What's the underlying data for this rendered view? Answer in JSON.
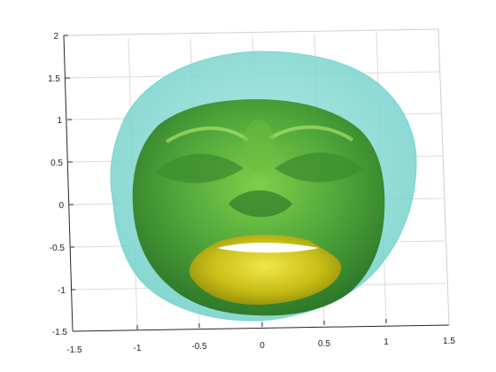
{
  "figure": {
    "background_color": "#ffffff",
    "axes_box_color": "#262626",
    "grid_color": "#dcdcdc",
    "grid": true
  },
  "axes": {
    "x_tick_labels": [
      "-1.5",
      "-1",
      "-0.5",
      "0",
      "0.5",
      "1",
      "1.5"
    ],
    "y_tick_labels": [
      "2",
      "1.5",
      "1",
      "0.5",
      "0",
      "-0.5",
      "-1",
      "-1.5"
    ]
  },
  "surfaces": [
    {
      "id": "outer_head",
      "description_color_role": "transparent cyan",
      "color": "#8fdcd6"
    },
    {
      "id": "inner_face",
      "description_color_role": "green surface",
      "color": "#5fae3c"
    },
    {
      "id": "mouth_region",
      "description_color_role": "yellow surface",
      "color": "#c9c21a"
    }
  ]
}
